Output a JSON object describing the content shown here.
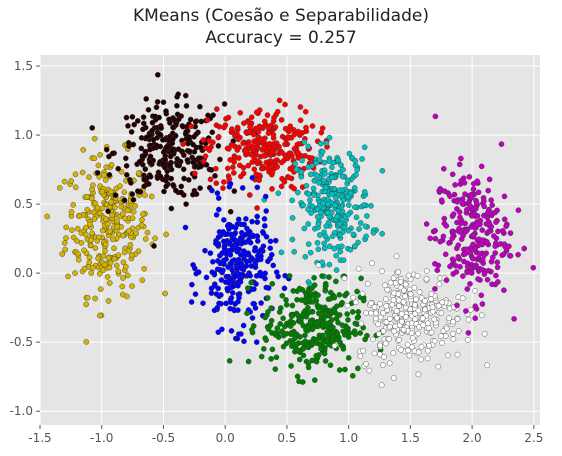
{
  "chart_data": {
    "type": "scatter",
    "title": "KMeans (Coesão e Separabilidade)",
    "subtitle": "Accuracy = 0.257",
    "xlabel": "",
    "ylabel": "",
    "xlim": [
      -1.5,
      2.55
    ],
    "ylim": [
      -1.1,
      1.58
    ],
    "xticks": [
      "-1.5",
      "-1.0",
      "-0.5",
      "0.0",
      "0.5",
      "1.0",
      "1.5",
      "2.0",
      "2.5"
    ],
    "yticks": [
      "-1.0",
      "-0.5",
      "0.0",
      "0.5",
      "1.0",
      "1.5"
    ],
    "xtick_values": [
      -1.5,
      -1.0,
      -0.5,
      0.0,
      0.5,
      1.0,
      1.5,
      2.0,
      2.5
    ],
    "ytick_values": [
      -1.0,
      -0.5,
      0.0,
      0.5,
      1.0,
      1.5
    ],
    "grid": true,
    "legend": "none",
    "clusters": [
      {
        "color": "#d4b400",
        "n": 300,
        "cx": -0.95,
        "cy": 0.35,
        "sx": 0.17,
        "sy": 0.25
      },
      {
        "color": "#220000",
        "n": 280,
        "cx": -0.45,
        "cy": 0.88,
        "sx": 0.22,
        "sy": 0.17
      },
      {
        "color": "#ff0000",
        "n": 280,
        "cx": 0.3,
        "cy": 0.9,
        "sx": 0.22,
        "sy": 0.15
      },
      {
        "color": "#00bfbf",
        "n": 280,
        "cx": 0.88,
        "cy": 0.5,
        "sx": 0.15,
        "sy": 0.2
      },
      {
        "color": "#0000ff",
        "n": 280,
        "cx": 0.1,
        "cy": 0.05,
        "sx": 0.14,
        "sy": 0.22
      },
      {
        "color": "#008000",
        "n": 300,
        "cx": 0.7,
        "cy": -0.38,
        "sx": 0.2,
        "sy": 0.17
      },
      {
        "color": "#ffffff",
        "n": 280,
        "cx": 1.5,
        "cy": -0.3,
        "sx": 0.22,
        "sy": 0.17
      },
      {
        "color": "#bf00bf",
        "n": 260,
        "cx": 2.0,
        "cy": 0.28,
        "sx": 0.15,
        "sy": 0.24
      }
    ]
  }
}
